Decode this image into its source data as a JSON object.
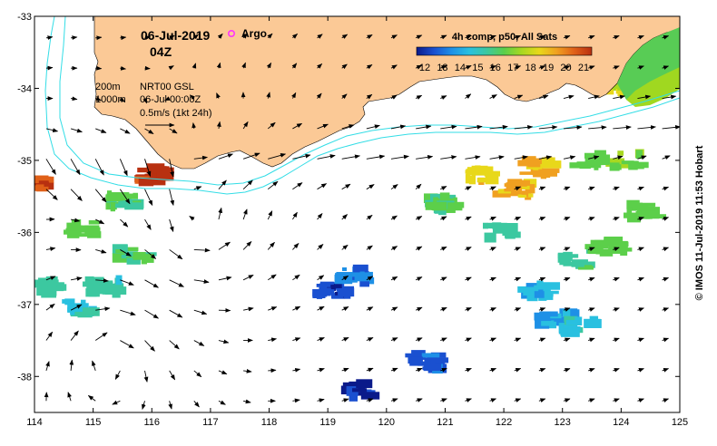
{
  "title": {
    "date": "06-Jul-2019",
    "hour": "04Z",
    "argo_label": "Argo"
  },
  "colorbar": {
    "title": "4h comp, p50, All Sats",
    "ticks": [
      "12",
      "13",
      "14",
      "15",
      "16",
      "17",
      "18",
      "19",
      "20",
      "21"
    ],
    "colors": [
      "#0a1a8a",
      "#1a50d0",
      "#1e90e6",
      "#29c0e0",
      "#3cc8a0",
      "#5ccf4a",
      "#a8d820",
      "#e8d81a",
      "#f0a020",
      "#e06018",
      "#b83010"
    ]
  },
  "legend": {
    "contour_200": "200m",
    "contour_1000": "1000m",
    "product": "NRT00 GSL",
    "time": "06-Jul 00:00Z",
    "scale": "0.5m/s (1kt 24h)"
  },
  "copyright": "© IMOS 11-Jul-2019 11:53 Hobart",
  "chart_data": {
    "type": "map",
    "xlim": [
      114,
      125
    ],
    "ylim": [
      -38.5,
      -33
    ],
    "x_ticks": [
      "114",
      "115",
      "116",
      "117",
      "118",
      "119",
      "120",
      "121",
      "122",
      "123",
      "124",
      "125"
    ],
    "y_ticks": [
      "-33",
      "-34",
      "-35",
      "-36",
      "-37",
      "-38"
    ],
    "land_color": "#fbc996",
    "contour_color": "#33dde6",
    "argo_marker_color": "#ff33ff",
    "eddies": [
      {
        "lon": 115.3,
        "lat": -37.7,
        "sense": "cw"
      },
      {
        "lon": 116.7,
        "lat": -35.9,
        "sense": "ccw"
      }
    ],
    "sst_patches": [
      {
        "lon": 114.8,
        "lat": -35.95,
        "sst": 16.5
      },
      {
        "lon": 115.5,
        "lat": -35.55,
        "sst": 16.0
      },
      {
        "lon": 115.7,
        "lat": -36.3,
        "sst": 16.0
      },
      {
        "lon": 115.2,
        "lat": -36.75,
        "sst": 15.5
      },
      {
        "lon": 114.8,
        "lat": -37.05,
        "sst": 15.0
      },
      {
        "lon": 114.2,
        "lat": -36.75,
        "sst": 15.5
      },
      {
        "lon": 119.1,
        "lat": -36.8,
        "sst": 12.5
      },
      {
        "lon": 119.5,
        "lat": -36.6,
        "sst": 13.5
      },
      {
        "lon": 119.6,
        "lat": -38.2,
        "sst": 12.3
      },
      {
        "lon": 120.7,
        "lat": -37.8,
        "sst": 13.0
      },
      {
        "lon": 121.0,
        "lat": -35.6,
        "sst": 16.0
      },
      {
        "lon": 121.9,
        "lat": -36.0,
        "sst": 15.5
      },
      {
        "lon": 122.6,
        "lat": -36.8,
        "sst": 14.5
      },
      {
        "lon": 122.9,
        "lat": -37.2,
        "sst": 14.0
      },
      {
        "lon": 123.3,
        "lat": -37.3,
        "sst": 14.8
      },
      {
        "lon": 123.2,
        "lat": -36.4,
        "sst": 15.7
      },
      {
        "lon": 123.8,
        "lat": -36.2,
        "sst": 16.3
      },
      {
        "lon": 124.4,
        "lat": -35.7,
        "sst": 16.5
      },
      {
        "lon": 124.1,
        "lat": -35.0,
        "sst": 16.8
      },
      {
        "lon": 123.5,
        "lat": -35.0,
        "sst": 16.5
      },
      {
        "lon": 122.6,
        "lat": -35.1,
        "sst": 19.0
      },
      {
        "lon": 121.6,
        "lat": -35.2,
        "sst": 18.5
      },
      {
        "lon": 122.2,
        "lat": -35.4,
        "sst": 19.0
      },
      {
        "lon": 114.1,
        "lat": -35.35,
        "sst": 20.5
      },
      {
        "lon": 116.0,
        "lat": -35.2,
        "sst": 21.0
      },
      {
        "lon": 124.3,
        "lat": -33.6,
        "sst": 17.0
      },
      {
        "lon": 124.7,
        "lat": -33.3,
        "sst": 16.5
      },
      {
        "lon": 124.0,
        "lat": -34.0,
        "sst": 18.0
      }
    ]
  }
}
